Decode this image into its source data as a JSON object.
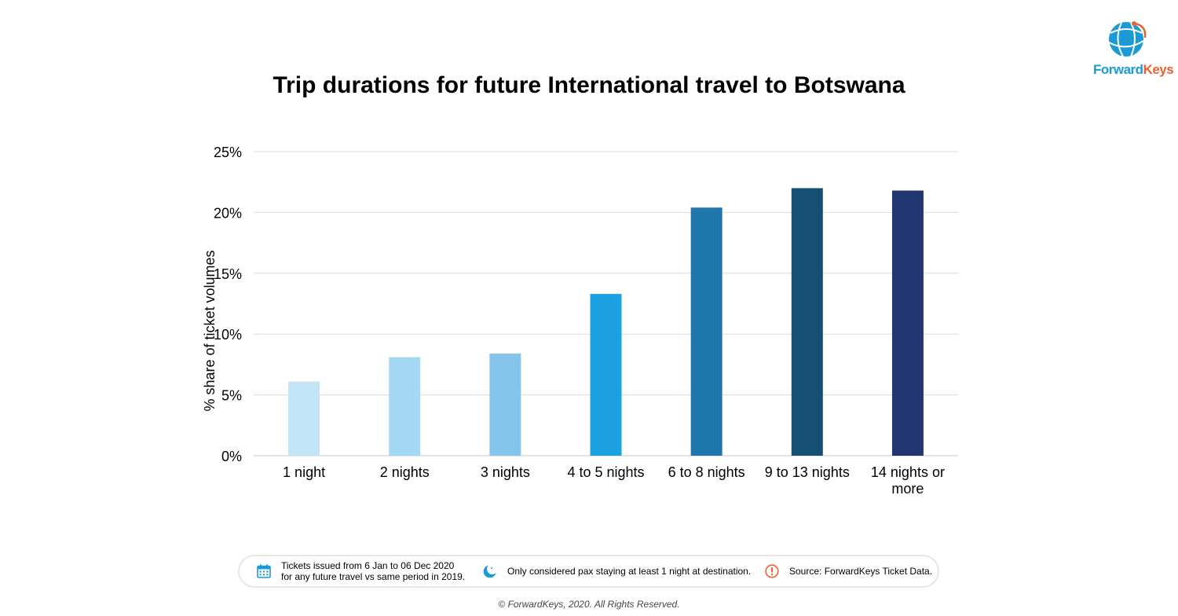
{
  "logo": {
    "text_part1": "Forward",
    "text_part2": "Keys",
    "colors": {
      "blue": "#1b9ad6",
      "orange": "#e9622d"
    }
  },
  "chart_data": {
    "type": "bar",
    "title": "Trip durations for future International travel to Botswana",
    "ylabel": "% share of ticket volumes",
    "xlabel": "",
    "categories": [
      [
        "1 night"
      ],
      [
        "2 nights"
      ],
      [
        "3 nights"
      ],
      [
        "4 to 5 nights"
      ],
      [
        "6 to 8 nights"
      ],
      [
        "9 to 13 nights"
      ],
      [
        "14 nights or",
        "more"
      ]
    ],
    "values": [
      6.1,
      8.1,
      8.4,
      13.3,
      20.4,
      22.0,
      21.8
    ],
    "bar_colors": [
      "#c3e4f6",
      "#a2d8f2",
      "#85c5ec",
      "#1ba1e2",
      "#1f77ae",
      "#154f74",
      "#213670"
    ],
    "ylim": [
      0,
      25
    ],
    "yticks": [
      0,
      5,
      10,
      15,
      20,
      25
    ],
    "ytick_labels": [
      "0%",
      "5%",
      "10%",
      "15%",
      "20%",
      "25%"
    ],
    "grid": true,
    "legend": "none"
  },
  "footer": {
    "notes": [
      {
        "icon": "calendar-icon",
        "lines": [
          "Tickets issued from 6 Jan to 06 Dec 2020",
          "for any future travel vs same period in 2019."
        ]
      },
      {
        "icon": "moon-icon",
        "lines": [
          "Only considered pax staying at least 1 night at destination."
        ]
      },
      {
        "icon": "alert-icon",
        "lines": [
          "Source: ForwardKeys Ticket Data."
        ]
      }
    ],
    "icon_colors": {
      "calendar": "#1b9ad6",
      "moon": "#1b9ad6",
      "alert": "#e9622d"
    },
    "copyright": "© ForwardKeys, 2020. All Rights Reserved."
  }
}
